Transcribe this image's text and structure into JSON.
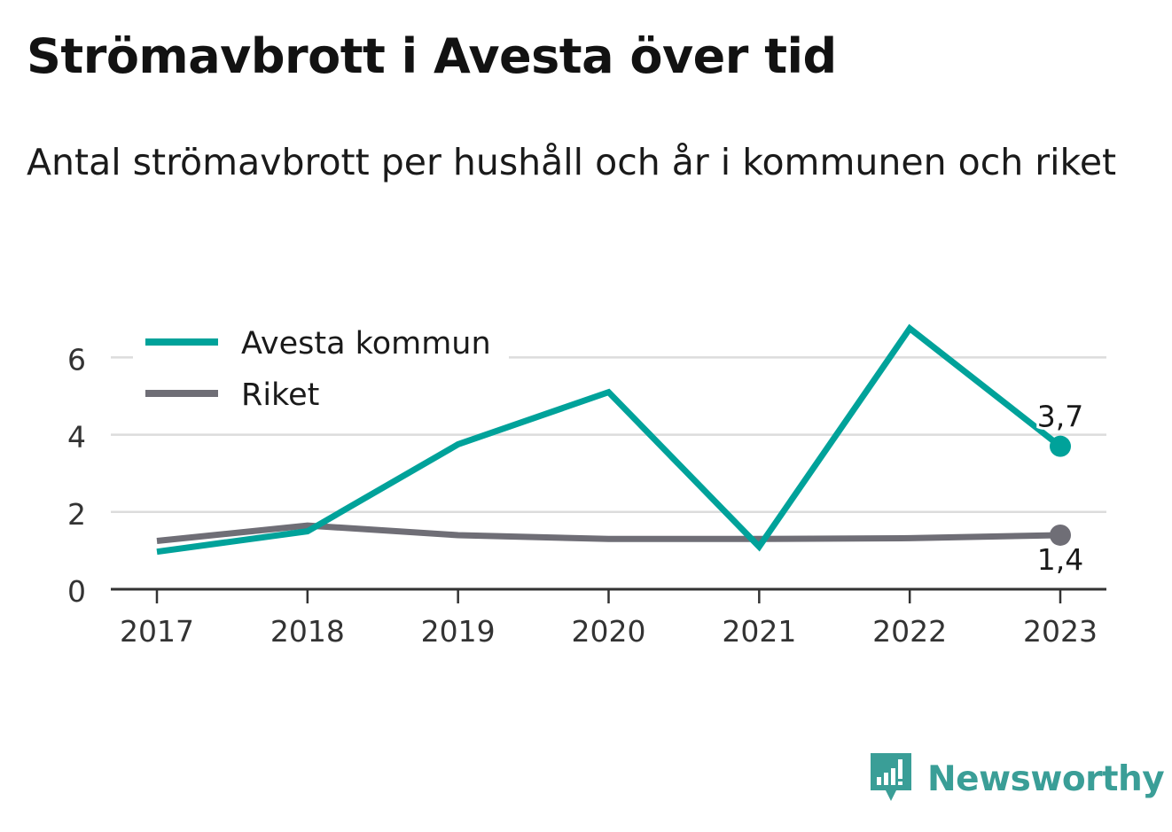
{
  "header": {
    "title": "Strömavbrott i Avesta över tid",
    "subtitle": "Antal strömavbrott per hushåll och år i kommunen och riket"
  },
  "brand": {
    "name": "Newsworthy",
    "color": "#3a9e97"
  },
  "chart_data": {
    "type": "line",
    "x": [
      "2017",
      "2018",
      "2019",
      "2020",
      "2021",
      "2022",
      "2023"
    ],
    "y_ticks": [
      "0",
      "2",
      "4",
      "6"
    ],
    "ylim": [
      0,
      6.6
    ],
    "grid": true,
    "legend_position": "top-left",
    "series": [
      {
        "name": "Avesta kommun",
        "color": "#00a29a",
        "values": [
          0.97,
          1.5,
          3.75,
          5.1,
          1.1,
          6.75,
          3.7
        ],
        "end_label": "3,7",
        "end_label_position": "above"
      },
      {
        "name": "Riket",
        "color": "#6f6e76",
        "values": [
          1.25,
          1.65,
          1.4,
          1.3,
          1.3,
          1.32,
          1.4
        ],
        "end_label": "1,4",
        "end_label_position": "below"
      }
    ]
  }
}
